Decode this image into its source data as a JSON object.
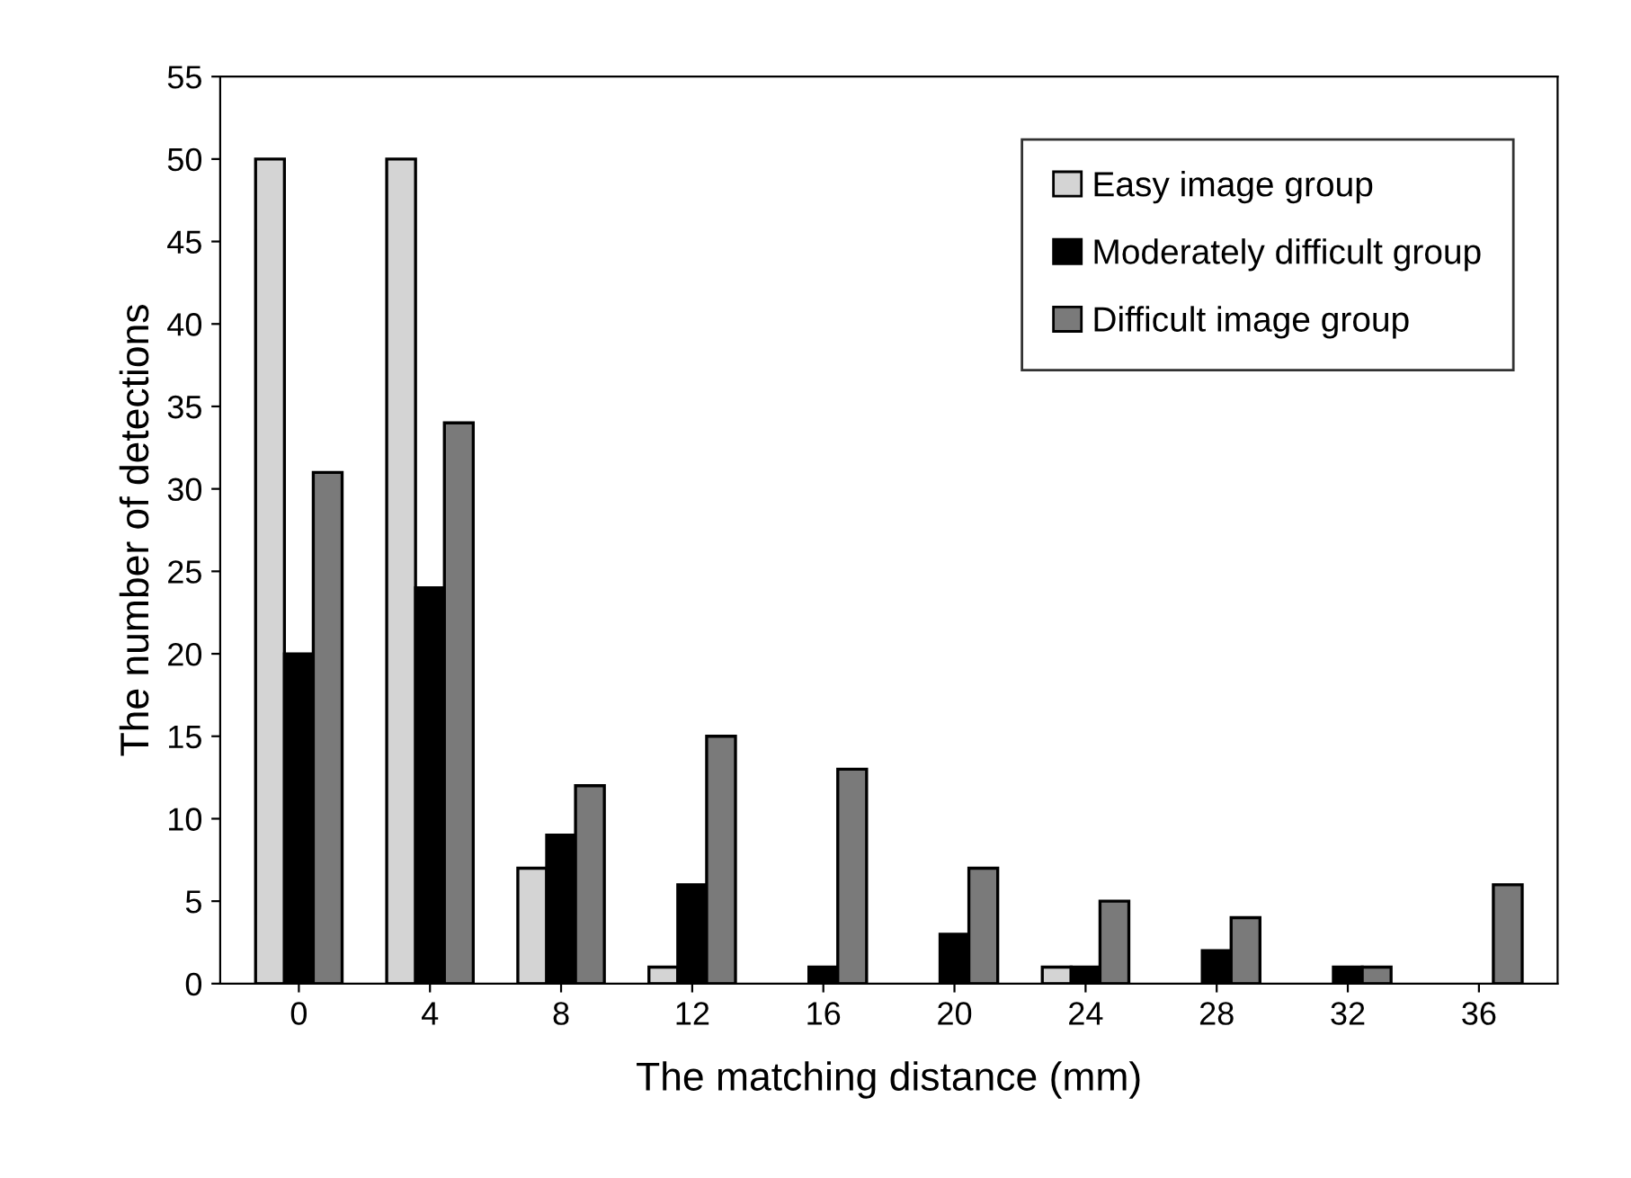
{
  "chart_data": {
    "type": "bar",
    "xlabel": "The matching distance (mm)",
    "ylabel": "The number of detections",
    "categories": [
      "0",
      "4",
      "8",
      "12",
      "16",
      "20",
      "24",
      "28",
      "32",
      "36"
    ],
    "series": [
      {
        "name": "Easy image group",
        "color": "#d4d4d4",
        "values": [
          50,
          50,
          7,
          1,
          0,
          0,
          1,
          0,
          0,
          0
        ]
      },
      {
        "name": "Moderately difficult group",
        "color": "#000000",
        "values": [
          20,
          24,
          9,
          6,
          1,
          3,
          1,
          2,
          1,
          0
        ]
      },
      {
        "name": "Difficult image group",
        "color": "#7a7a7a",
        "values": [
          31,
          34,
          12,
          15,
          13,
          7,
          5,
          4,
          1,
          6
        ]
      }
    ],
    "ylim": [
      0,
      55
    ],
    "yticks": [
      0,
      5,
      10,
      15,
      20,
      25,
      30,
      35,
      40,
      45,
      50,
      55
    ],
    "grid": false,
    "legend": "top right"
  }
}
